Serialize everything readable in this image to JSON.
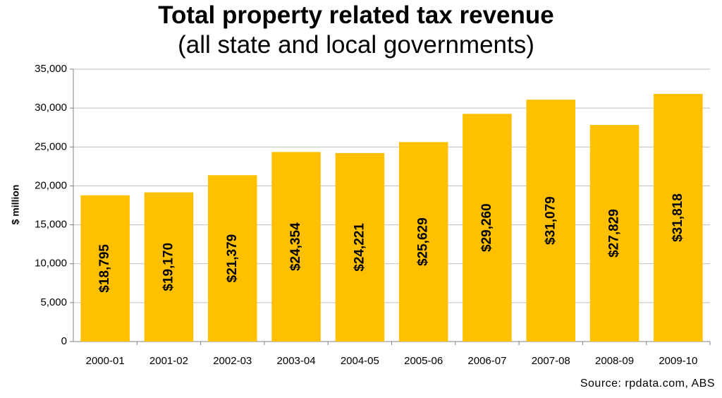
{
  "chart_data": {
    "type": "bar",
    "title": "Total property related tax revenue",
    "subtitle": "(all state and local governments)",
    "ylabel": "$ million",
    "xlabel": "",
    "categories": [
      "2000-01",
      "2001-02",
      "2002-03",
      "2003-04",
      "2004-05",
      "2005-06",
      "2006-07",
      "2007-08",
      "2008-09",
      "2009-10"
    ],
    "values": [
      18795,
      19170,
      21379,
      24354,
      24221,
      25629,
      29260,
      31079,
      27829,
      31818
    ],
    "data_labels": [
      "$18,795",
      "$19,170",
      "$21,379",
      "$24,354",
      "$24,221",
      "$25,629",
      "$29,260",
      "$31,079",
      "$27,829",
      "$31,818"
    ],
    "y_ticks": [
      "0",
      "5,000",
      "10,000",
      "15,000",
      "20,000",
      "25,000",
      "30,000",
      "35,000"
    ],
    "ylim": [
      0,
      35000
    ],
    "y_step": 5000,
    "grid": true,
    "bar_color": "#FFC000",
    "grid_color": "#BFBFBF",
    "source": "Source: rpdata.com, ABS"
  }
}
